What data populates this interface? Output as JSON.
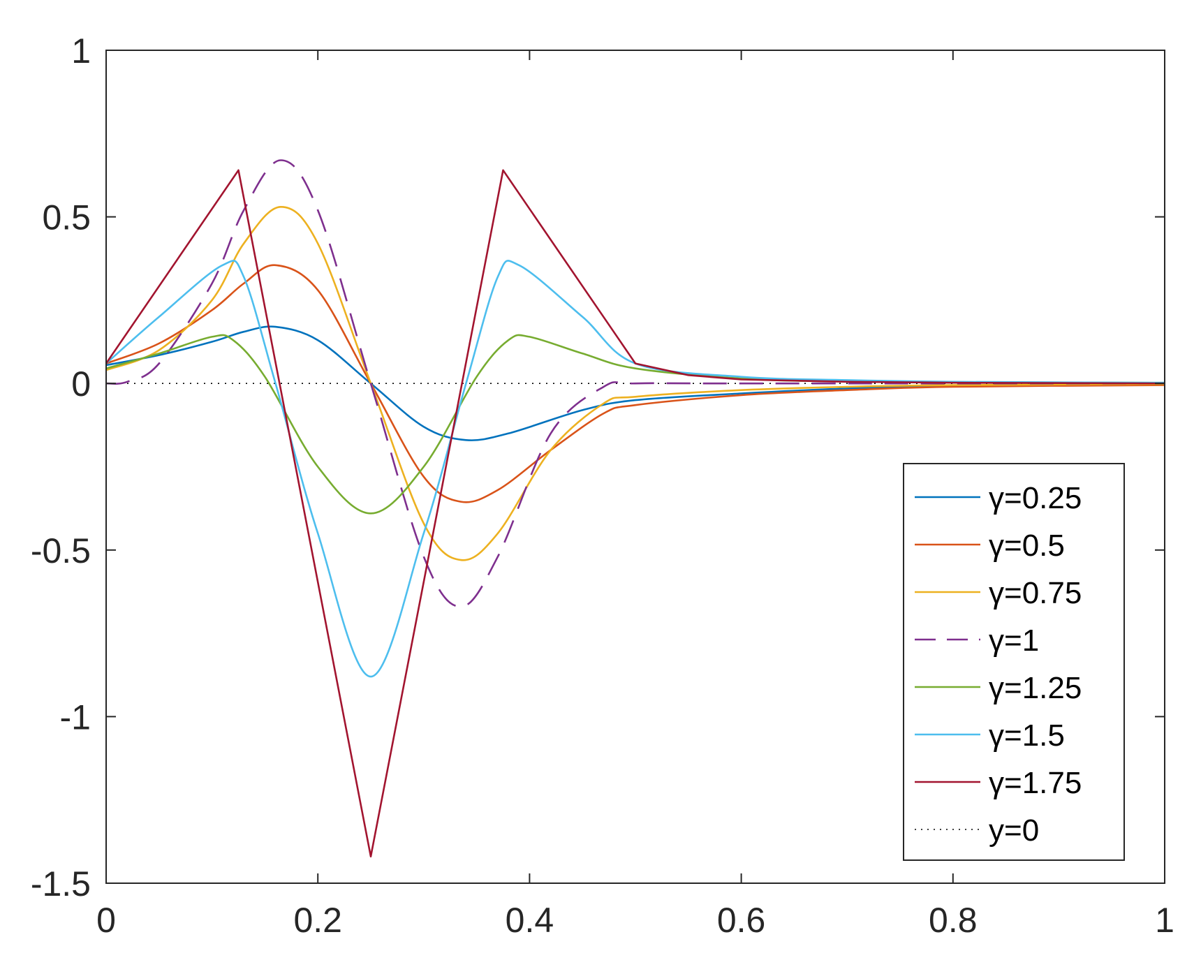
{
  "chart_data": {
    "type": "line",
    "title": "",
    "xlabel": "",
    "ylabel": "",
    "xlim": [
      0,
      1
    ],
    "ylim": [
      -1.5,
      1
    ],
    "grid": false,
    "legend_position": "bottom-right",
    "xticks": [
      0,
      0.2,
      0.4,
      0.6,
      0.8,
      1
    ],
    "xtick_labels": [
      "0",
      "0.2",
      "0.4",
      "0.6",
      "0.8",
      "1"
    ],
    "yticks": [
      -1.5,
      -1,
      -0.5,
      0,
      0.5,
      1
    ],
    "ytick_labels": [
      "-1.5",
      "-1",
      "-0.5",
      "0",
      "0.5",
      "1"
    ],
    "series": [
      {
        "name": "γ=0.25",
        "color": "#0072BD",
        "style": "solid",
        "x": [
          0,
          0.05,
          0.1,
          0.13,
          0.16,
          0.2,
          0.25,
          0.3,
          0.34,
          0.38,
          0.45,
          0.5,
          0.6,
          0.7,
          0.8,
          1
        ],
        "y": [
          0.055,
          0.085,
          0.125,
          0.155,
          0.17,
          0.13,
          0.0,
          -0.13,
          -0.17,
          -0.15,
          -0.08,
          -0.05,
          -0.03,
          -0.015,
          -0.008,
          -0.002
        ]
      },
      {
        "name": "γ=0.5",
        "color": "#D95319",
        "style": "solid",
        "x": [
          0,
          0.05,
          0.1,
          0.13,
          0.16,
          0.2,
          0.25,
          0.3,
          0.335,
          0.37,
          0.42,
          0.47,
          0.5,
          0.6,
          0.7,
          0.8,
          1
        ],
        "y": [
          0.06,
          0.12,
          0.22,
          0.3,
          0.355,
          0.28,
          0.0,
          -0.28,
          -0.355,
          -0.32,
          -0.2,
          -0.09,
          -0.065,
          -0.035,
          -0.02,
          -0.01,
          -0.005
        ]
      },
      {
        "name": "γ=0.75",
        "color": "#EDB120",
        "style": "solid",
        "x": [
          0,
          0.05,
          0.1,
          0.13,
          0.165,
          0.2,
          0.25,
          0.3,
          0.335,
          0.37,
          0.42,
          0.47,
          0.5,
          0.6,
          0.7,
          0.8,
          1
        ],
        "y": [
          0.04,
          0.1,
          0.25,
          0.42,
          0.53,
          0.42,
          0.0,
          -0.42,
          -0.53,
          -0.45,
          -0.2,
          -0.06,
          -0.04,
          -0.02,
          -0.01,
          -0.005,
          -0.002
        ]
      },
      {
        "name": "γ=1",
        "color": "#7E2F8E",
        "style": "dashed",
        "x": [
          0,
          0.02,
          0.05,
          0.1,
          0.13,
          0.165,
          0.2,
          0.25,
          0.3,
          0.335,
          0.37,
          0.42,
          0.47,
          0.5,
          0.6,
          1
        ],
        "y": [
          0.0,
          0.005,
          0.06,
          0.3,
          0.52,
          0.67,
          0.52,
          0.0,
          -0.52,
          -0.67,
          -0.52,
          -0.15,
          -0.01,
          0.0,
          0.0,
          0.0
        ]
      },
      {
        "name": "γ=1.25",
        "color": "#77AC30",
        "style": "solid",
        "x": [
          0,
          0.05,
          0.1,
          0.12,
          0.15,
          0.2,
          0.25,
          0.3,
          0.35,
          0.38,
          0.4,
          0.45,
          0.5,
          0.6,
          0.7,
          1
        ],
        "y": [
          0.045,
          0.09,
          0.14,
          0.13,
          0.02,
          -0.25,
          -0.39,
          -0.25,
          0.02,
          0.13,
          0.14,
          0.09,
          0.045,
          0.015,
          0.006,
          0.002
        ]
      },
      {
        "name": "γ=1.5",
        "color": "#4DBEEE",
        "style": "solid",
        "x": [
          0,
          0.05,
          0.11,
          0.13,
          0.16,
          0.2,
          0.25,
          0.3,
          0.34,
          0.37,
          0.39,
          0.45,
          0.5,
          0.6,
          0.7,
          0.8,
          1
        ],
        "y": [
          0.06,
          0.2,
          0.355,
          0.32,
          0.0,
          -0.45,
          -0.88,
          -0.45,
          0.0,
          0.32,
          0.355,
          0.2,
          0.06,
          0.02,
          0.01,
          0.005,
          0.002
        ]
      },
      {
        "name": "γ=1.75",
        "color": "#A2142F",
        "style": "solid",
        "x": [
          0,
          0.125,
          0.25,
          0.375,
          0.5,
          0.55,
          0.6,
          0.7,
          0.8,
          1
        ],
        "y": [
          0.06,
          0.64,
          -1.42,
          0.64,
          0.06,
          0.025,
          0.012,
          0.005,
          0.002,
          0.0
        ]
      },
      {
        "name": "y=0",
        "color": "#000000",
        "style": "dotted",
        "x": [
          0,
          1
        ],
        "y": [
          0,
          0
        ]
      }
    ]
  }
}
